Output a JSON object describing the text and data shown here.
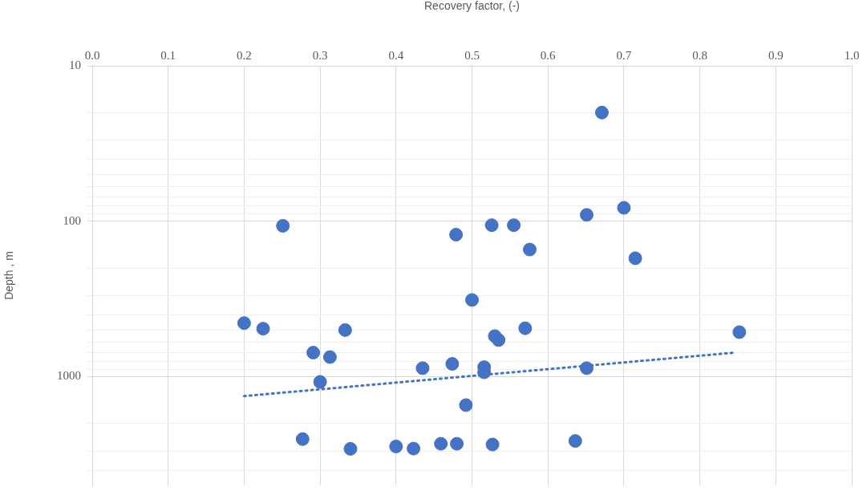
{
  "chart_data": {
    "type": "scatter",
    "xlabel": "Recovery factor, (-)",
    "ylabel": "Depth , m",
    "xlim": [
      0,
      1
    ],
    "xticks": [
      {
        "value": 0,
        "label": "0.0"
      },
      {
        "value": 0.1,
        "label": "0.1"
      },
      {
        "value": 0.2,
        "label": "0.2"
      },
      {
        "value": 0.3,
        "label": "0.3"
      },
      {
        "value": 0.4,
        "label": "0.4"
      },
      {
        "value": 0.5,
        "label": "0.5"
      },
      {
        "value": 0.6,
        "label": "0.6"
      },
      {
        "value": 0.7,
        "label": "0.7"
      },
      {
        "value": 0.8,
        "label": "0.8"
      },
      {
        "value": 0.9,
        "label": "0.9"
      },
      {
        "value": 1,
        "label": "1.0"
      }
    ],
    "ylim": [
      5000,
      10
    ],
    "yticks": [
      10,
      {
        "value": 20,
        "label": null
      },
      {
        "value": 30,
        "label": null
      },
      {
        "value": 40,
        "label": null
      },
      {
        "value": 50,
        "label": null
      },
      {
        "value": 60,
        "label": null
      },
      {
        "value": 70,
        "label": null
      },
      {
        "value": 80,
        "label": null
      },
      {
        "value": 90,
        "label": null
      },
      100,
      {
        "value": 200,
        "label": null
      },
      {
        "value": 300,
        "label": null
      },
      {
        "value": 400,
        "label": null
      },
      {
        "value": 500,
        "label": null
      },
      {
        "value": 600,
        "label": null
      },
      {
        "value": 700,
        "label": null
      },
      {
        "value": 800,
        "label": null
      },
      {
        "value": 900,
        "label": null
      },
      1000,
      {
        "value": 2000,
        "label": null
      },
      {
        "value": 3000,
        "label": null
      },
      {
        "value": 4000,
        "label": null
      }
    ],
    "log": "y",
    "grid": true,
    "series": [
      {
        "marker": "circle",
        "color": "#4472c4",
        "x": [
          0.251,
          0.479,
          0.5,
          0.2,
          0.225,
          0.333,
          0.291,
          0.313,
          0.435,
          0.474,
          0.3,
          0.492,
          0.277,
          0.34,
          0.4,
          0.423,
          0.459,
          0.48,
          0.671,
          0.7,
          0.651,
          0.526,
          0.555,
          0.576,
          0.715,
          0.57,
          0.53,
          0.535,
          0.852,
          0.516,
          0.516,
          0.651,
          0.527,
          0.636
        ],
        "values": [
          107,
          122,
          321,
          452,
          491,
          501,
          700,
          748,
          881,
          827,
          1080,
          1523,
          2520,
          2910,
          2810,
          2900,
          2700,
          2700,
          20,
          82,
          91,
          106,
          106,
          152,
          173,
          488,
          548,
          581,
          517,
          868,
          937,
          881,
          2730,
          2590
        ]
      },
      {
        "type": "line",
        "color": "#4472c4",
        "line_style": "dotted",
        "marker": "none",
        "x": [
          0.2,
          0.846
        ],
        "values": [
          1332,
          700
        ]
      }
    ]
  }
}
